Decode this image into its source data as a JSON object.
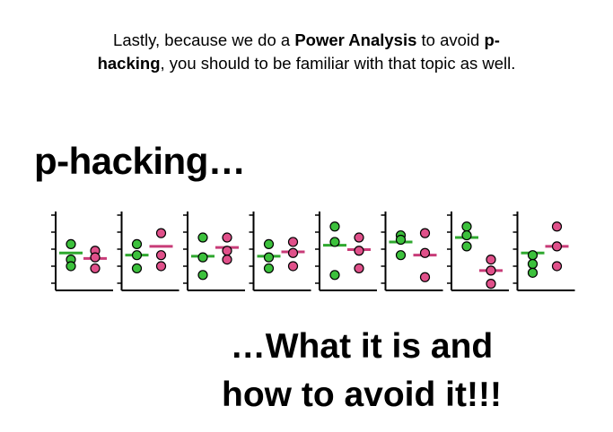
{
  "intro": {
    "part1": "Lastly, because we do a ",
    "bold1": "Power Analysis",
    "part2": " to avoid ",
    "bold2": "p-hacking",
    "part3": ", you should to be familiar with that topic as well."
  },
  "heading": "p-hacking…",
  "closing": {
    "line1": "…What it is and",
    "line2": "how to avoid it!!!"
  },
  "colors": {
    "group_a": "#3cc13c",
    "group_b": "#e0508a",
    "group_a_line": "#2fa82f",
    "group_b_line": "#c83c78"
  },
  "chart_data": {
    "type": "scatter",
    "panels": [
      {
        "a": [
          2.6,
          1.9,
          1.6
        ],
        "b": [
          2.3,
          2.0,
          1.5
        ],
        "a_mean": 2.2,
        "b_mean": 1.95
      },
      {
        "a": [
          2.6,
          2.1,
          1.5
        ],
        "b": [
          3.1,
          2.1,
          1.6
        ],
        "a_mean": 2.1,
        "b_mean": 2.5
      },
      {
        "a": [
          2.9,
          2.0,
          1.2
        ],
        "b": [
          2.9,
          2.3,
          1.9
        ],
        "a_mean": 2.05,
        "b_mean": 2.45
      },
      {
        "a": [
          2.6,
          2.0,
          1.5
        ],
        "b": [
          2.7,
          2.2,
          1.6
        ],
        "a_mean": 2.05,
        "b_mean": 2.25
      },
      {
        "a": [
          3.4,
          2.7,
          1.2
        ],
        "b": [
          2.9,
          2.3,
          1.5
        ],
        "a_mean": 2.55,
        "b_mean": 2.35
      },
      {
        "a": [
          3.0,
          2.8,
          2.1
        ],
        "b": [
          3.1,
          2.2,
          1.1
        ],
        "a_mean": 2.7,
        "b_mean": 2.1
      },
      {
        "a": [
          3.4,
          3.0,
          2.5
        ],
        "b": [
          1.9,
          1.4,
          0.8
        ],
        "a_mean": 2.9,
        "b_mean": 1.4
      },
      {
        "a": [
          2.1,
          1.7,
          1.3
        ],
        "b": [
          3.4,
          2.5,
          1.6
        ],
        "a_mean": 2.2,
        "b_mean": 2.5
      }
    ]
  }
}
